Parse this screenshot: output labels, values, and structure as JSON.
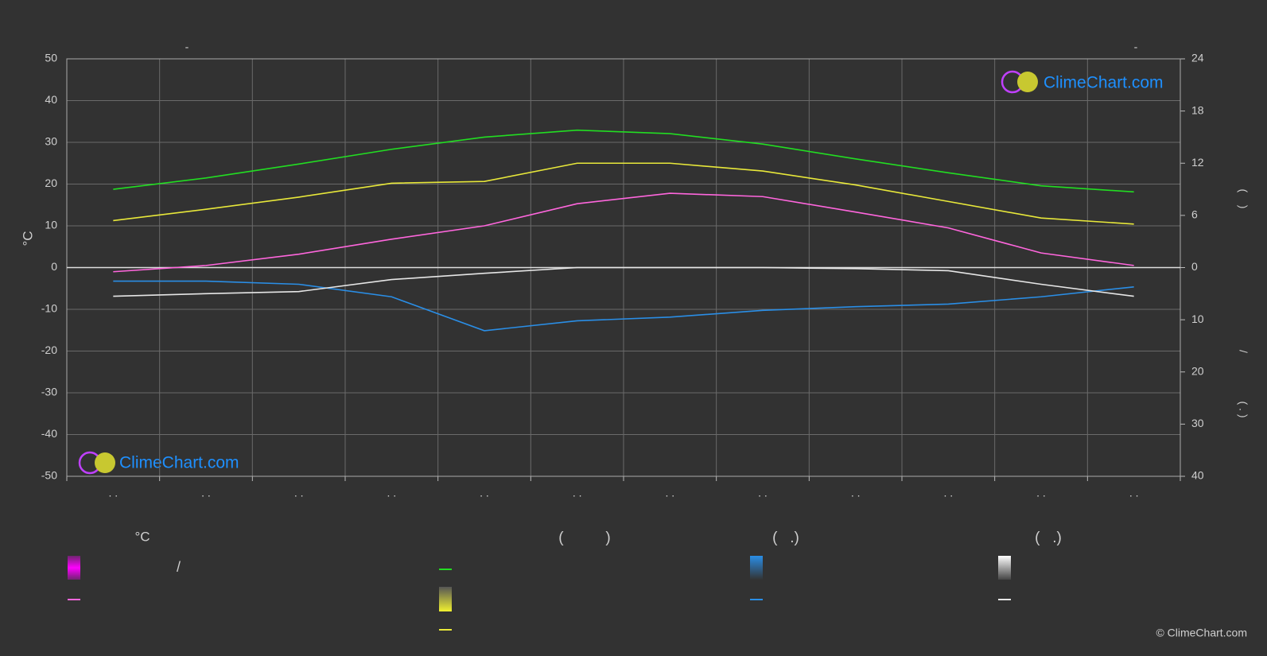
{
  "chart_data": {
    "type": "line",
    "title_left": "-",
    "title_right": "-",
    "y_label": "°C",
    "y2_label_parts": [
      "(    )",
      "/",
      "( . )"
    ],
    "categories": [
      ". .",
      ". .",
      ". .",
      ". .",
      ". .",
      ". .",
      ". .",
      ". .",
      ". .",
      ". .",
      ". .",
      ". ."
    ],
    "ylim": [
      -50,
      50
    ],
    "yticks": [
      -50,
      -40,
      -30,
      -20,
      -10,
      0,
      10,
      20,
      30,
      40,
      50
    ],
    "y2lim": [
      0,
      24
    ],
    "y2ticks": [
      0,
      6,
      12,
      18,
      24
    ],
    "y3lim": [
      0,
      40
    ],
    "y3ticks": [
      10,
      20,
      30,
      40
    ],
    "grid": true,
    "series": [
      {
        "color": "#22dd22",
        "axis": "y2",
        "values": [
          9.0,
          10.3,
          11.9,
          13.6,
          15.0,
          15.8,
          15.4,
          14.2,
          12.5,
          10.9,
          9.4,
          8.7
        ]
      },
      {
        "color": "#e8e83a",
        "axis": "y2",
        "values": [
          5.4,
          6.7,
          8.1,
          9.7,
          9.9,
          12.0,
          12.0,
          11.1,
          9.5,
          7.6,
          5.7,
          5.0
        ]
      },
      {
        "color": "#ff66dd",
        "values": [
          -1.0,
          0.5,
          3.2,
          6.8,
          10.0,
          15.3,
          17.8,
          17.0,
          13.3,
          9.5,
          3.5,
          0.5
        ]
      },
      {
        "color": "#2a8ee6",
        "axis": "y3",
        "values": [
          2.6,
          2.6,
          3.2,
          5.6,
          12.1,
          10.2,
          9.5,
          8.2,
          7.5,
          7.0,
          5.6,
          3.7
        ]
      },
      {
        "color": "#e6e6e6",
        "axis": "y3",
        "values": [
          5.5,
          5.0,
          4.6,
          2.3,
          1.1,
          0,
          0,
          0,
          0.2,
          0.6,
          3.2,
          5.5
        ]
      }
    ],
    "legend_headers": [
      "°C",
      "(          )",
      "(   .)",
      "(   .)"
    ],
    "legend_text": "/",
    "watermark": "ClimeChart.com",
    "copyright": "© ClimeChart.com"
  }
}
